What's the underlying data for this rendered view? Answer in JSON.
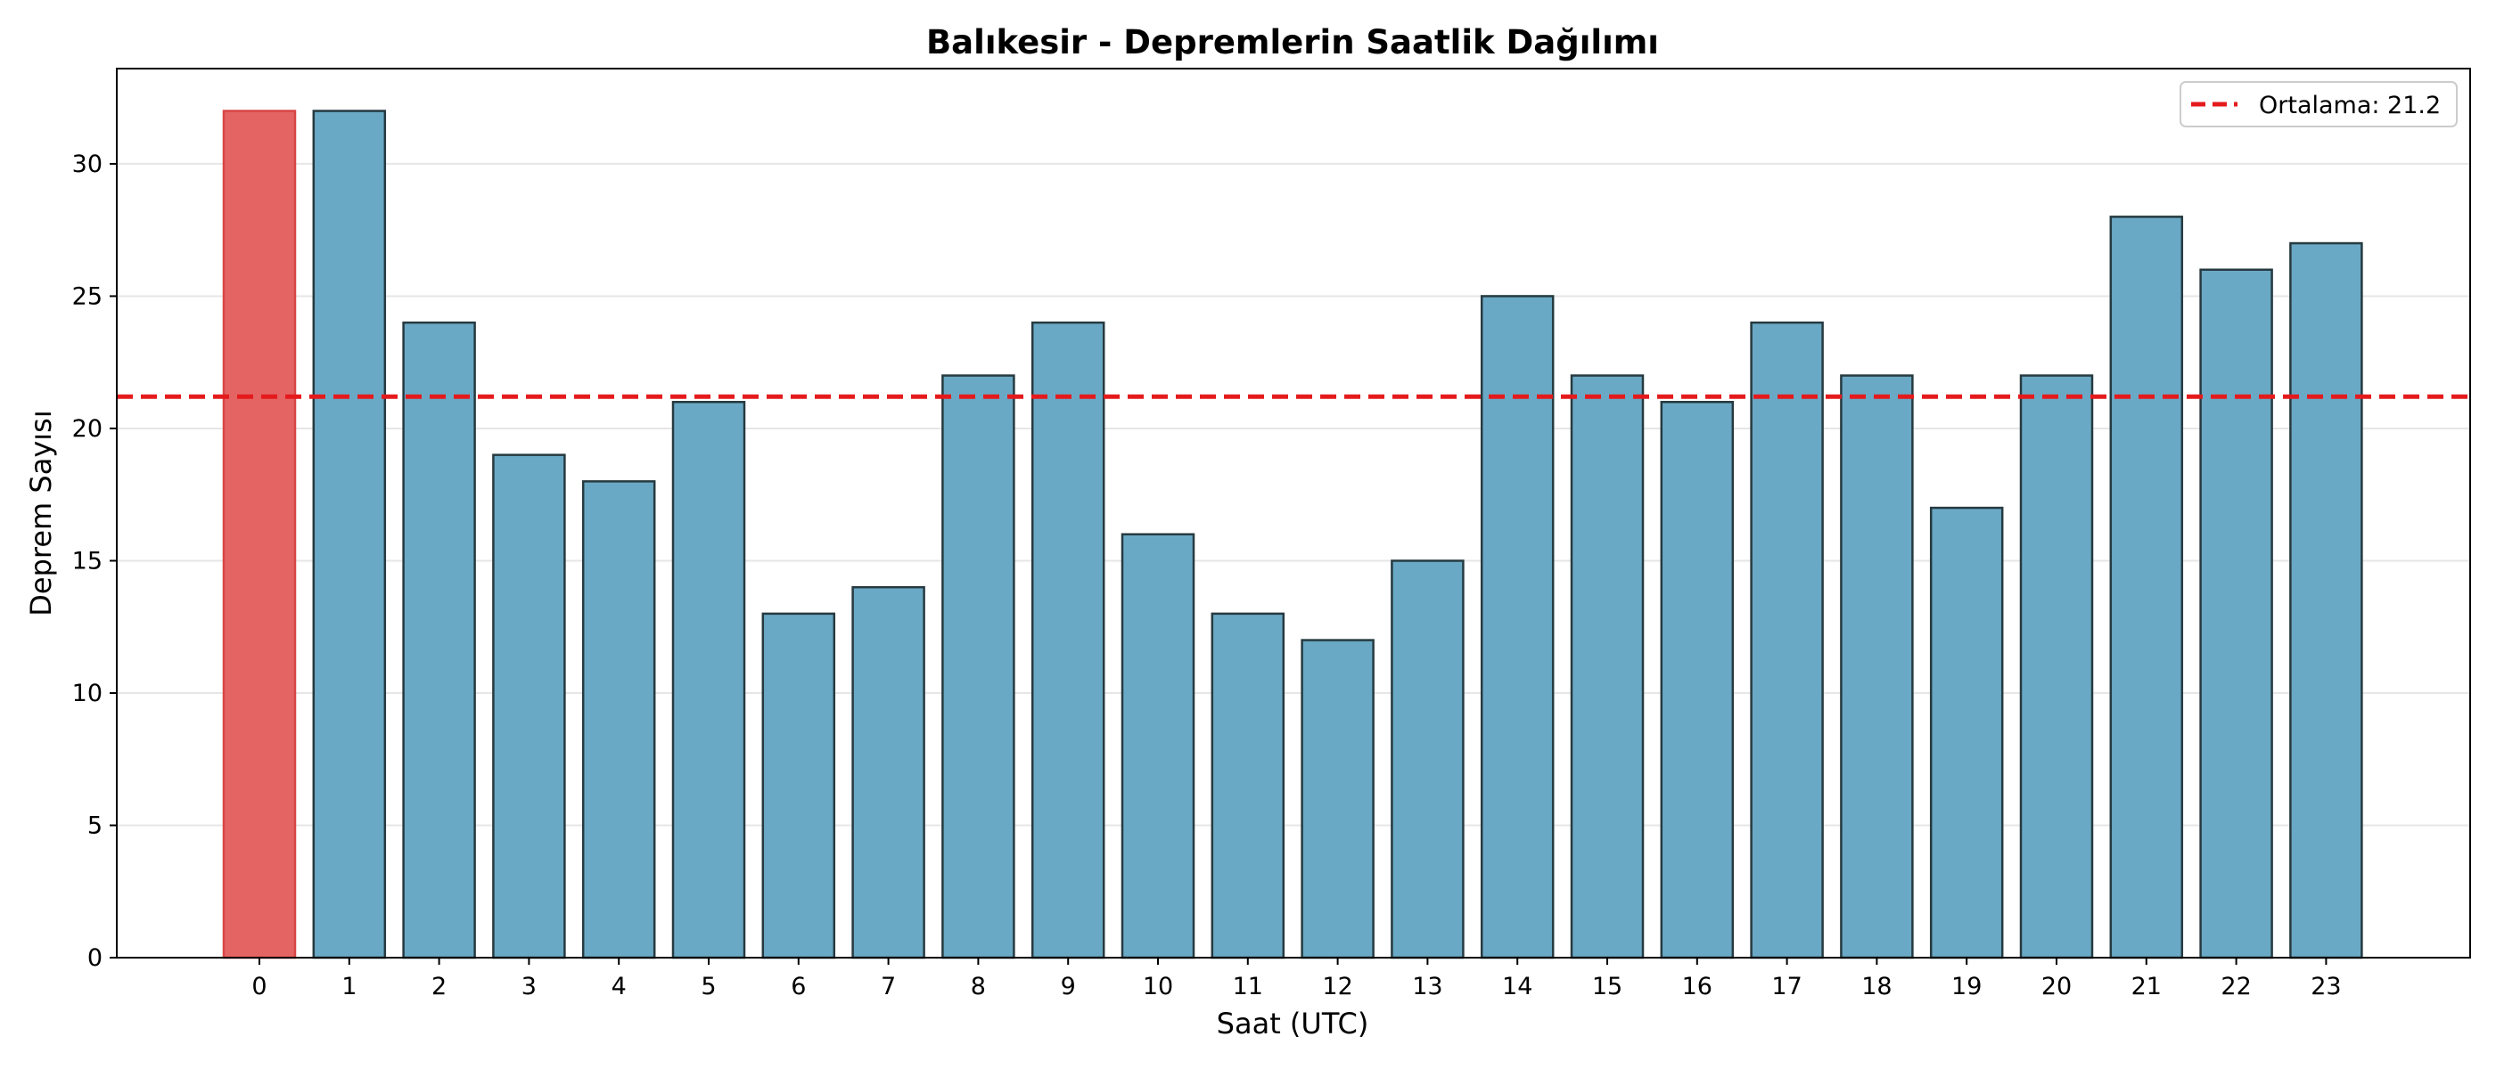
{
  "chart_data": {
    "type": "bar",
    "title": "Balıkesir - Depremlerin Saatlik Dağılımı",
    "xlabel": "Saat (UTC)",
    "ylabel": "Deprem Sayısı",
    "categories": [
      "0",
      "1",
      "2",
      "3",
      "4",
      "5",
      "6",
      "7",
      "8",
      "9",
      "10",
      "11",
      "12",
      "13",
      "14",
      "15",
      "16",
      "17",
      "18",
      "19",
      "20",
      "21",
      "22",
      "23"
    ],
    "values": [
      32,
      32,
      24,
      19,
      18,
      21,
      13,
      14,
      22,
      24,
      16,
      13,
      12,
      15,
      25,
      22,
      21,
      24,
      22,
      17,
      22,
      28,
      26,
      27
    ],
    "highlight_index": 0,
    "ylim": [
      0,
      33.6
    ],
    "yticks": [
      0,
      5,
      10,
      15,
      20,
      25,
      30
    ],
    "mean_line": {
      "value": 21.2,
      "label": "Ortalama: 21.2",
      "color": "#e41a1c"
    },
    "colors": {
      "bar": "#6aa9c5",
      "highlight": "#e46464",
      "edge": "#263a40",
      "highlight_edge": "#d84545"
    },
    "grid": "y",
    "legend_position": "top-right"
  }
}
